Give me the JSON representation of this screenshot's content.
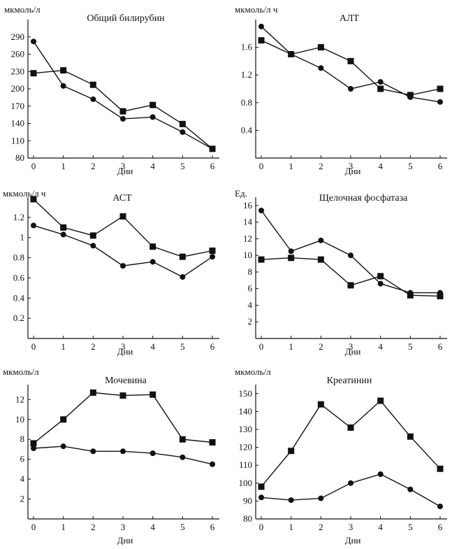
{
  "chart_data": [
    {
      "type": "line",
      "title": "Общий билирубин",
      "unit": "мкмоль/л",
      "xlabel": "Дни",
      "x": [
        0,
        1,
        2,
        3,
        4,
        5,
        6
      ],
      "ylim": [
        80,
        320
      ],
      "yticks": [
        80,
        110,
        140,
        170,
        200,
        230,
        260,
        290
      ],
      "series": [
        {
          "marker": "circle",
          "values": [
            282,
            205,
            182,
            148,
            151,
            125,
            96
          ]
        },
        {
          "marker": "square",
          "values": [
            227,
            232,
            207,
            161,
            172,
            139,
            96
          ]
        }
      ]
    },
    {
      "type": "line",
      "title": "АЛТ",
      "unit": "мкмоль/л ч",
      "xlabel": "Дни",
      "x": [
        0,
        1,
        2,
        3,
        4,
        5,
        6
      ],
      "ylim": [
        0,
        2.0
      ],
      "yticks": [
        0.4,
        0.8,
        1.2,
        1.6
      ],
      "series": [
        {
          "marker": "circle",
          "values": [
            1.9,
            1.5,
            1.3,
            1.0,
            1.1,
            0.88,
            0.81
          ]
        },
        {
          "marker": "square",
          "values": [
            1.7,
            1.5,
            1.6,
            1.4,
            1.0,
            0.91,
            1.0
          ]
        }
      ]
    },
    {
      "type": "line",
      "title": "АСТ",
      "unit": "мкмоль/л ч",
      "xlabel": "Дни",
      "x": [
        0,
        1,
        2,
        3,
        4,
        5,
        6
      ],
      "ylim": [
        0,
        1.4
      ],
      "yticks": [
        0.2,
        0.4,
        0.6,
        0.8,
        1.0,
        1.2
      ],
      "series": [
        {
          "marker": "circle",
          "values": [
            1.12,
            1.03,
            0.92,
            0.72,
            0.76,
            0.61,
            0.81
          ]
        },
        {
          "marker": "square",
          "values": [
            1.38,
            1.1,
            1.02,
            1.21,
            0.91,
            0.81,
            0.87
          ]
        }
      ]
    },
    {
      "type": "line",
      "title": "Щелочная фосфатаза",
      "unit": "Ед.",
      "xlabel": "Дни",
      "x": [
        0,
        1,
        2,
        3,
        4,
        5,
        6
      ],
      "ylim": [
        0,
        17
      ],
      "yticks": [
        2,
        4,
        6,
        8,
        10,
        12,
        14,
        16
      ],
      "series": [
        {
          "marker": "circle",
          "values": [
            15.4,
            10.5,
            11.8,
            10.0,
            6.6,
            5.5,
            5.5
          ]
        },
        {
          "marker": "square",
          "values": [
            9.5,
            9.7,
            9.5,
            6.4,
            7.5,
            5.2,
            5.1
          ]
        }
      ]
    },
    {
      "type": "line",
      "title": "Мочевина",
      "unit": "мкмоль/л",
      "xlabel": "Дни",
      "x": [
        0,
        1,
        2,
        3,
        4,
        5,
        6
      ],
      "ylim": [
        0,
        13.5
      ],
      "yticks": [
        2,
        4,
        6,
        8,
        10,
        12
      ],
      "series": [
        {
          "marker": "circle",
          "values": [
            7.1,
            7.3,
            6.8,
            6.8,
            6.6,
            6.2,
            5.5
          ]
        },
        {
          "marker": "square",
          "values": [
            7.6,
            10.0,
            12.7,
            12.4,
            12.5,
            8.0,
            7.7
          ]
        }
      ]
    },
    {
      "type": "line",
      "title": "Креатинин",
      "unit": "мкмоль/л",
      "xlabel": "Дни",
      "x": [
        0,
        1,
        2,
        3,
        4,
        5,
        6
      ],
      "ylim": [
        80,
        155
      ],
      "yticks": [
        80,
        90,
        100,
        110,
        120,
        130,
        140,
        150
      ],
      "series": [
        {
          "marker": "circle",
          "values": [
            92,
            90.5,
            91.5,
            100,
            105,
            96.5,
            87
          ]
        },
        {
          "marker": "square",
          "values": [
            98,
            118,
            144,
            131,
            146,
            126,
            108
          ]
        }
      ]
    }
  ]
}
